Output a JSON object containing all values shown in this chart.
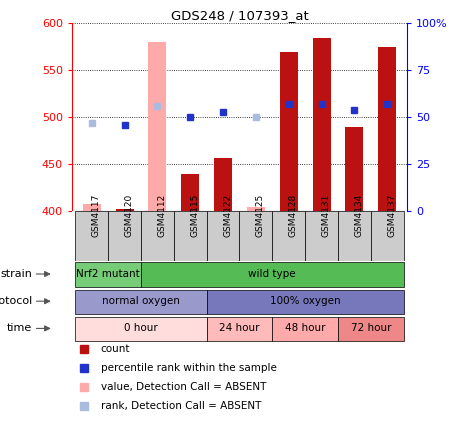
{
  "title": "GDS248 / 107393_at",
  "samples": [
    "GSM4117",
    "GSM4120",
    "GSM4112",
    "GSM4115",
    "GSM4122",
    "GSM4125",
    "GSM4128",
    "GSM4131",
    "GSM4134",
    "GSM4137"
  ],
  "count_values": [
    408,
    403,
    580,
    440,
    457,
    405,
    570,
    585,
    490,
    575
  ],
  "count_absent": [
    true,
    false,
    true,
    false,
    false,
    true,
    false,
    false,
    false,
    false
  ],
  "rank_values": [
    47,
    46,
    56,
    50,
    53,
    50,
    57,
    57,
    54,
    57
  ],
  "rank_absent": [
    true,
    false,
    true,
    false,
    false,
    true,
    false,
    false,
    false,
    false
  ],
  "ylim_left": [
    400,
    600
  ],
  "ylim_right": [
    0,
    100
  ],
  "yticks_left": [
    400,
    450,
    500,
    550,
    600
  ],
  "yticks_right": [
    0,
    25,
    50,
    75,
    100
  ],
  "bar_width": 0.55,
  "strain_groups": [
    {
      "label": "Nrf2 mutant",
      "start": 0,
      "end": 2,
      "color": "#77cc77"
    },
    {
      "label": "wild type",
      "start": 2,
      "end": 10,
      "color": "#55bb55"
    }
  ],
  "protocol_groups": [
    {
      "label": "normal oxygen",
      "start": 0,
      "end": 4,
      "color": "#9999cc"
    },
    {
      "label": "100% oxygen",
      "start": 4,
      "end": 10,
      "color": "#7777bb"
    }
  ],
  "time_groups": [
    {
      "label": "0 hour",
      "start": 0,
      "end": 4,
      "color": "#ffdddd"
    },
    {
      "label": "24 hour",
      "start": 4,
      "end": 6,
      "color": "#ffbbbb"
    },
    {
      "label": "48 hour",
      "start": 6,
      "end": 8,
      "color": "#ffaaaa"
    },
    {
      "label": "72 hour",
      "start": 8,
      "end": 10,
      "color": "#ee8888"
    }
  ],
  "color_present_bar": "#bb1111",
  "color_absent_bar": "#ffaaaa",
  "color_present_rank": "#2233cc",
  "color_absent_rank": "#aabbdd",
  "legend_items": [
    {
      "label": "count",
      "color": "#bb1111"
    },
    {
      "label": "percentile rank within the sample",
      "color": "#2233cc"
    },
    {
      "label": "value, Detection Call = ABSENT",
      "color": "#ffaaaa"
    },
    {
      "label": "rank, Detection Call = ABSENT",
      "color": "#aabbdd"
    }
  ]
}
